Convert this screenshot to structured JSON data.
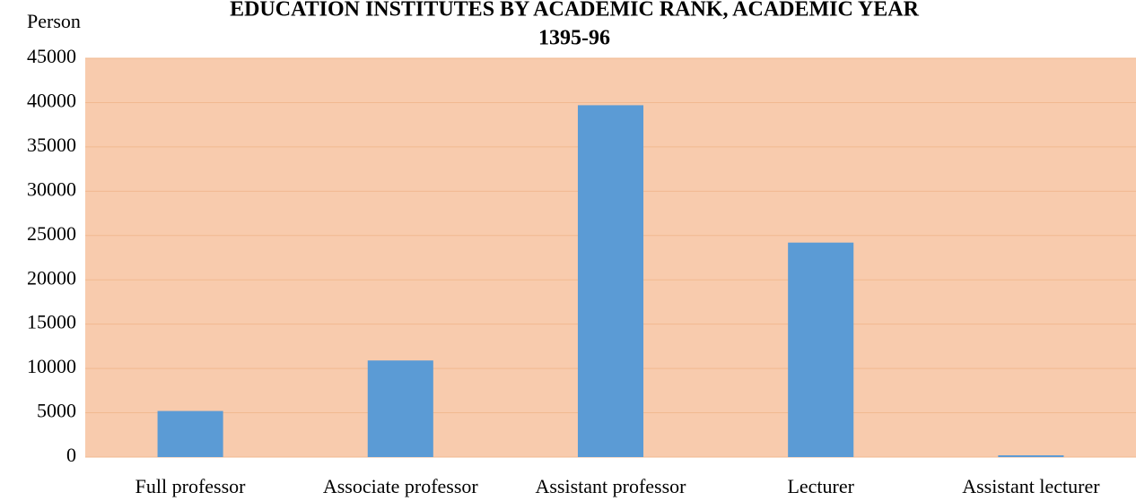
{
  "chart_data": {
    "type": "bar",
    "title": [
      "EDUCATION INSTITUTES BY ACADEMIC RANK, ACADEMIC YEAR",
      "1395-96"
    ],
    "y_label": "Person",
    "categories": [
      "Full professor",
      "Associate professor",
      "Assistant professor",
      "Lecturer",
      "Assistant lecturer"
    ],
    "values": [
      5200,
      10900,
      39700,
      24200,
      200
    ],
    "color": "#5b9bd5",
    "ylim": [
      0,
      45000
    ],
    "yticks": [
      0,
      5000,
      10000,
      15000,
      20000,
      25000,
      30000,
      35000,
      40000,
      45000
    ],
    "grid": true
  }
}
